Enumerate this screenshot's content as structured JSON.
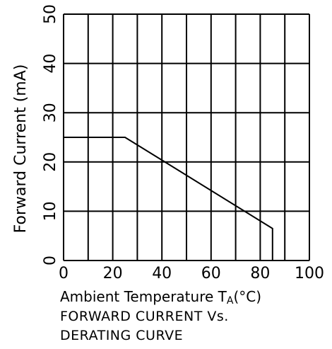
{
  "chart_data": {
    "type": "line",
    "xlabel_main": "Ambient Temperature T",
    "xlabel_sub": "A",
    "xlabel_unit": "(°C)",
    "ylabel": "Forward Current (mA)",
    "caption_lines": [
      "FORWARD CURRENT Vs.",
      "DERATING CURVE"
    ],
    "xlim": [
      0,
      100
    ],
    "ylim": [
      0,
      50
    ],
    "xticks": [
      0,
      20,
      40,
      60,
      80,
      100
    ],
    "yticks": [
      0,
      10,
      20,
      30,
      40,
      50
    ],
    "x_grid_step": 10,
    "y_grid_step": 10,
    "grid": true,
    "legend": "none",
    "series": [
      {
        "x": [
          0,
          25,
          85,
          85
        ],
        "y": [
          25,
          25,
          6.5,
          0
        ]
      }
    ],
    "colors": {
      "line": "#000000",
      "grid": "#000000",
      "background": "#ffffff"
    }
  }
}
